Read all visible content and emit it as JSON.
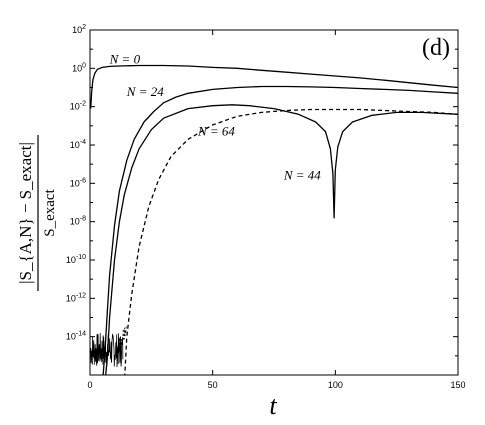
{
  "chart_data": {
    "type": "line",
    "panel_label": "(d)",
    "xlabel": "t",
    "ylabel": {
      "numerator": "|S_{A,N} − S_exact|",
      "denominator": "S_exact"
    },
    "xlim": [
      0,
      150
    ],
    "ylim_exponent": [
      -16,
      2
    ],
    "y_scale": "log",
    "x_ticks": [
      "0",
      "50",
      "100",
      "150"
    ],
    "y_tick_exponents": [
      -14,
      -12,
      -10,
      -8,
      -6,
      -4,
      -2,
      0,
      2
    ],
    "grid": false,
    "series": [
      {
        "label": "N = 0",
        "style": "solid",
        "points_log10": [
          [
            0.3,
            -2.1
          ],
          [
            0.7,
            -1.2
          ],
          [
            1.2,
            -0.6
          ],
          [
            2,
            -0.25
          ],
          [
            3,
            -0.05
          ],
          [
            5,
            0.05
          ],
          [
            8,
            0.1
          ],
          [
            12,
            0.12
          ],
          [
            20,
            0.15
          ],
          [
            30,
            0.15
          ],
          [
            40,
            0.12
          ],
          [
            50,
            0.05
          ],
          [
            60,
            0
          ],
          [
            70,
            -0.1
          ],
          [
            80,
            -0.2
          ],
          [
            90,
            -0.3
          ],
          [
            100,
            -0.4
          ],
          [
            110,
            -0.5
          ],
          [
            120,
            -0.62
          ],
          [
            130,
            -0.75
          ],
          [
            140,
            -0.88
          ],
          [
            150,
            -1
          ]
        ]
      },
      {
        "label": "N = 24",
        "style": "solid",
        "points_log10": [
          [
            5,
            -16.5
          ],
          [
            6,
            -15
          ],
          [
            7,
            -12.8
          ],
          [
            8,
            -10.8
          ],
          [
            10,
            -8.2
          ],
          [
            12,
            -6.4
          ],
          [
            15,
            -4.8
          ],
          [
            18,
            -3.7
          ],
          [
            22,
            -2.8
          ],
          [
            26,
            -2.25
          ],
          [
            30,
            -1.8
          ],
          [
            35,
            -1.5
          ],
          [
            40,
            -1.3
          ],
          [
            50,
            -1.1
          ],
          [
            60,
            -1
          ],
          [
            70,
            -0.95
          ],
          [
            80,
            -0.95
          ],
          [
            90,
            -0.97
          ],
          [
            100,
            -1
          ],
          [
            110,
            -1.05
          ],
          [
            120,
            -1.1
          ],
          [
            130,
            -1.15
          ],
          [
            140,
            -1.23
          ],
          [
            150,
            -1.3
          ]
        ]
      },
      {
        "label": "N = 44",
        "style": "solid",
        "points_log10": [
          [
            6,
            -16.5
          ],
          [
            7,
            -15.2
          ],
          [
            8,
            -13
          ],
          [
            10,
            -10
          ],
          [
            12,
            -8
          ],
          [
            14,
            -6.6
          ],
          [
            17,
            -5.2
          ],
          [
            20,
            -4.2
          ],
          [
            25,
            -3.2
          ],
          [
            30,
            -2.6
          ],
          [
            40,
            -2.1
          ],
          [
            50,
            -1.95
          ],
          [
            58,
            -1.9
          ],
          [
            65,
            -1.95
          ],
          [
            75,
            -2.1
          ],
          [
            85,
            -2.4
          ],
          [
            92,
            -2.8
          ],
          [
            96,
            -3.3
          ],
          [
            98,
            -4.2
          ],
          [
            99,
            -5.5
          ],
          [
            99.5,
            -7.8
          ],
          [
            100,
            -5.3
          ],
          [
            101,
            -4.1
          ],
          [
            103,
            -3.3
          ],
          [
            107,
            -2.8
          ],
          [
            115,
            -2.45
          ],
          [
            125,
            -2.3
          ],
          [
            135,
            -2.3
          ],
          [
            150,
            -2.4
          ]
        ]
      },
      {
        "label": "N = 64",
        "style": "dashed",
        "points_log10": [
          [
            14,
            -16.5
          ],
          [
            15,
            -14
          ],
          [
            17,
            -11.8
          ],
          [
            20,
            -9.3
          ],
          [
            24,
            -7.2
          ],
          [
            28,
            -5.8
          ],
          [
            33,
            -4.6
          ],
          [
            40,
            -3.7
          ],
          [
            50,
            -2.95
          ],
          [
            60,
            -2.5
          ],
          [
            70,
            -2.3
          ],
          [
            80,
            -2.2
          ],
          [
            90,
            -2.15
          ],
          [
            100,
            -2.15
          ],
          [
            110,
            -2.15
          ],
          [
            120,
            -2.2
          ],
          [
            130,
            -2.25
          ],
          [
            140,
            -2.3
          ],
          [
            150,
            -2.4
          ]
        ]
      }
    ],
    "annotations": [
      {
        "text": "N = 0",
        "x": 8,
        "y": 0.25
      },
      {
        "text": "N = 24",
        "x": 15,
        "y": -1.45
      },
      {
        "text": "N = 64",
        "x": 44,
        "y": -3.5
      },
      {
        "text": "N = 44",
        "x": 79,
        "y": -5.8
      }
    ]
  }
}
